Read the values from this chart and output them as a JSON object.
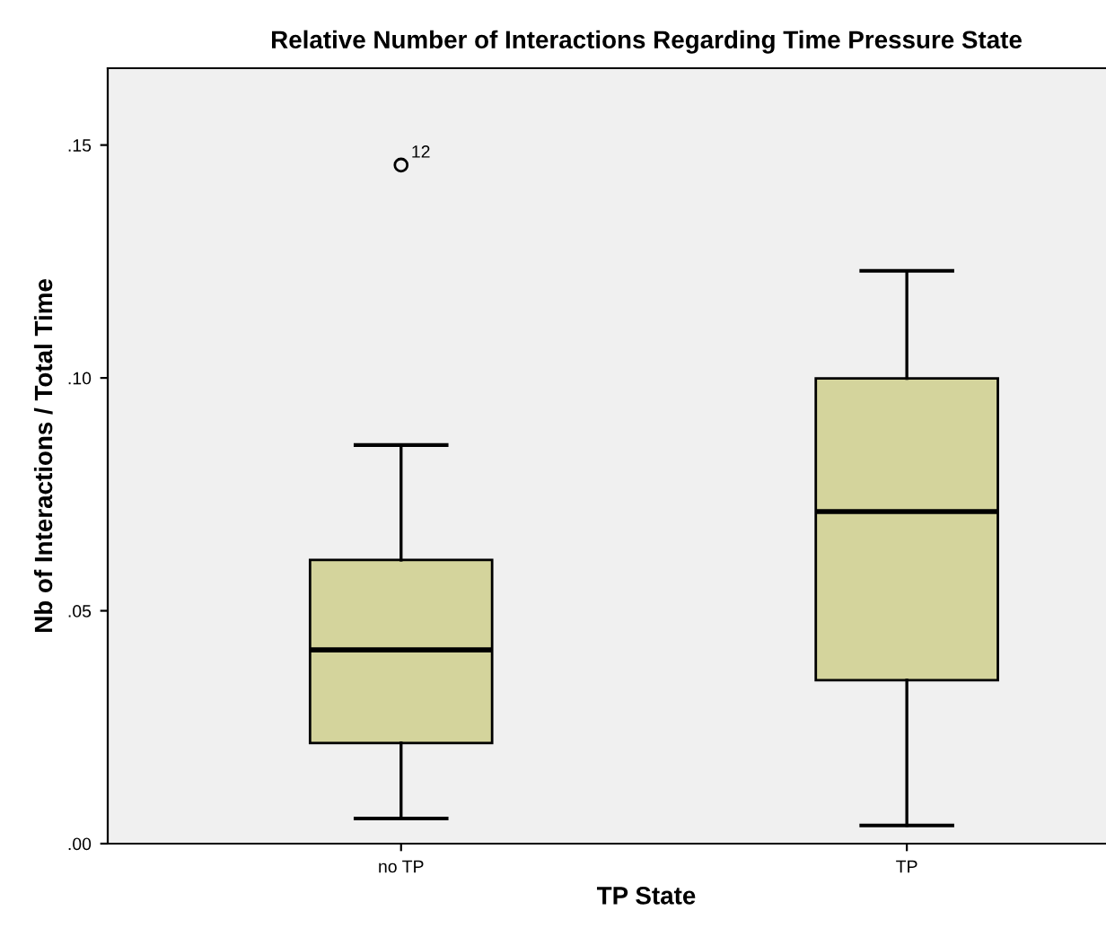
{
  "chart_data": {
    "type": "box",
    "title": "Relative Number of Interactions Regarding Time Pressure State",
    "xlabel": "TP State",
    "ylabel": "Nb of Interactions / Total Time",
    "categories": [
      "no TP",
      "TP"
    ],
    "boxes": [
      {
        "low": 0.0054,
        "q1": 0.0216,
        "median": 0.0416,
        "q3": 0.0609,
        "high": 0.0856,
        "outliers": [
          0.1457
        ]
      },
      {
        "low": 0.0039,
        "q1": 0.0351,
        "median": 0.0713,
        "q3": 0.0999,
        "high": 0.123
      }
    ],
    "color": "#d4d49c",
    "ylim": [
      0,
      0.1665
    ],
    "yticks": [
      {
        "value": 0,
        "label": ".00"
      },
      {
        "value": 0.05,
        "label": ".05"
      },
      {
        "value": 0.1,
        "label": ".10"
      },
      {
        "value": 0.15,
        "label": ".15"
      }
    ],
    "annotations": [
      "12"
    ],
    "grid": false
  }
}
